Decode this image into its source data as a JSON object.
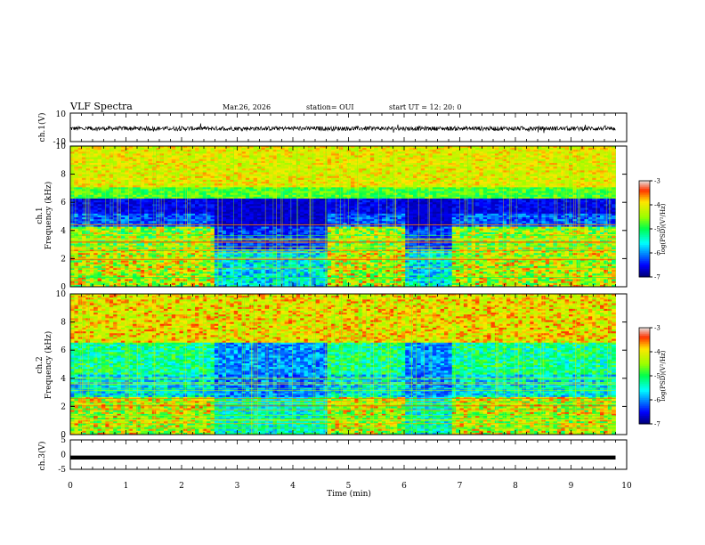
{
  "header": {
    "title": "VLF Spectra",
    "date": "Mar.26, 2026",
    "station": "station= OUI",
    "start_ut": "start  UT =   12: 20: 0"
  },
  "chart_data": [
    {
      "type": "line",
      "name": "ch1-waveform",
      "ylabel": "ch.1(V)",
      "ylim": [
        -10,
        10
      ],
      "yticks": [
        "10",
        "-10"
      ],
      "xlim": [
        0,
        10
      ],
      "description_note": "",
      "mean": -0.8,
      "amplitude": 1.5
    },
    {
      "type": "heatmap",
      "name": "ch1-spectrogram",
      "ylabel": "ch.1\nFrequency  (kHz)",
      "ylim": [
        0,
        10
      ],
      "yticks": [
        "0",
        "2",
        "4",
        "6",
        "8",
        "10"
      ],
      "xlim": [
        0,
        9.8
      ],
      "colorbar": {
        "label": "log(PSD)(V²/Hz)",
        "ticks": [
          "-3",
          "-4",
          "-5",
          "-6",
          "-7"
        ],
        "range": [
          -7,
          -3
        ]
      }
    },
    {
      "type": "heatmap",
      "name": "ch2-spectrogram",
      "ylabel": "ch.2\nFrequency  (kHz)",
      "ylim": [
        0,
        10
      ],
      "yticks": [
        "0",
        "2",
        "4",
        "6",
        "8",
        "10"
      ],
      "xlim": [
        0,
        9.8
      ],
      "colorbar": {
        "label": "log(PSD)(V²/Hz)",
        "ticks": [
          "-3",
          "-4",
          "-5",
          "-6",
          "-7"
        ],
        "range": [
          -7,
          -3
        ]
      }
    },
    {
      "type": "line",
      "name": "ch3-waveform",
      "ylabel": "ch.3(V)",
      "ylim": [
        -5,
        5
      ],
      "yticks": [
        "5",
        "0",
        "-5"
      ],
      "xlim": [
        0,
        10
      ],
      "mean": -1.0,
      "amplitude": 0.1
    }
  ],
  "xaxis": {
    "label": "Time  (min)",
    "ticks": [
      "0",
      "1",
      "2",
      "3",
      "4",
      "5",
      "6",
      "7",
      "8",
      "9",
      "10"
    ]
  },
  "colors": {
    "frame": "#000000",
    "trace": "#000000"
  }
}
